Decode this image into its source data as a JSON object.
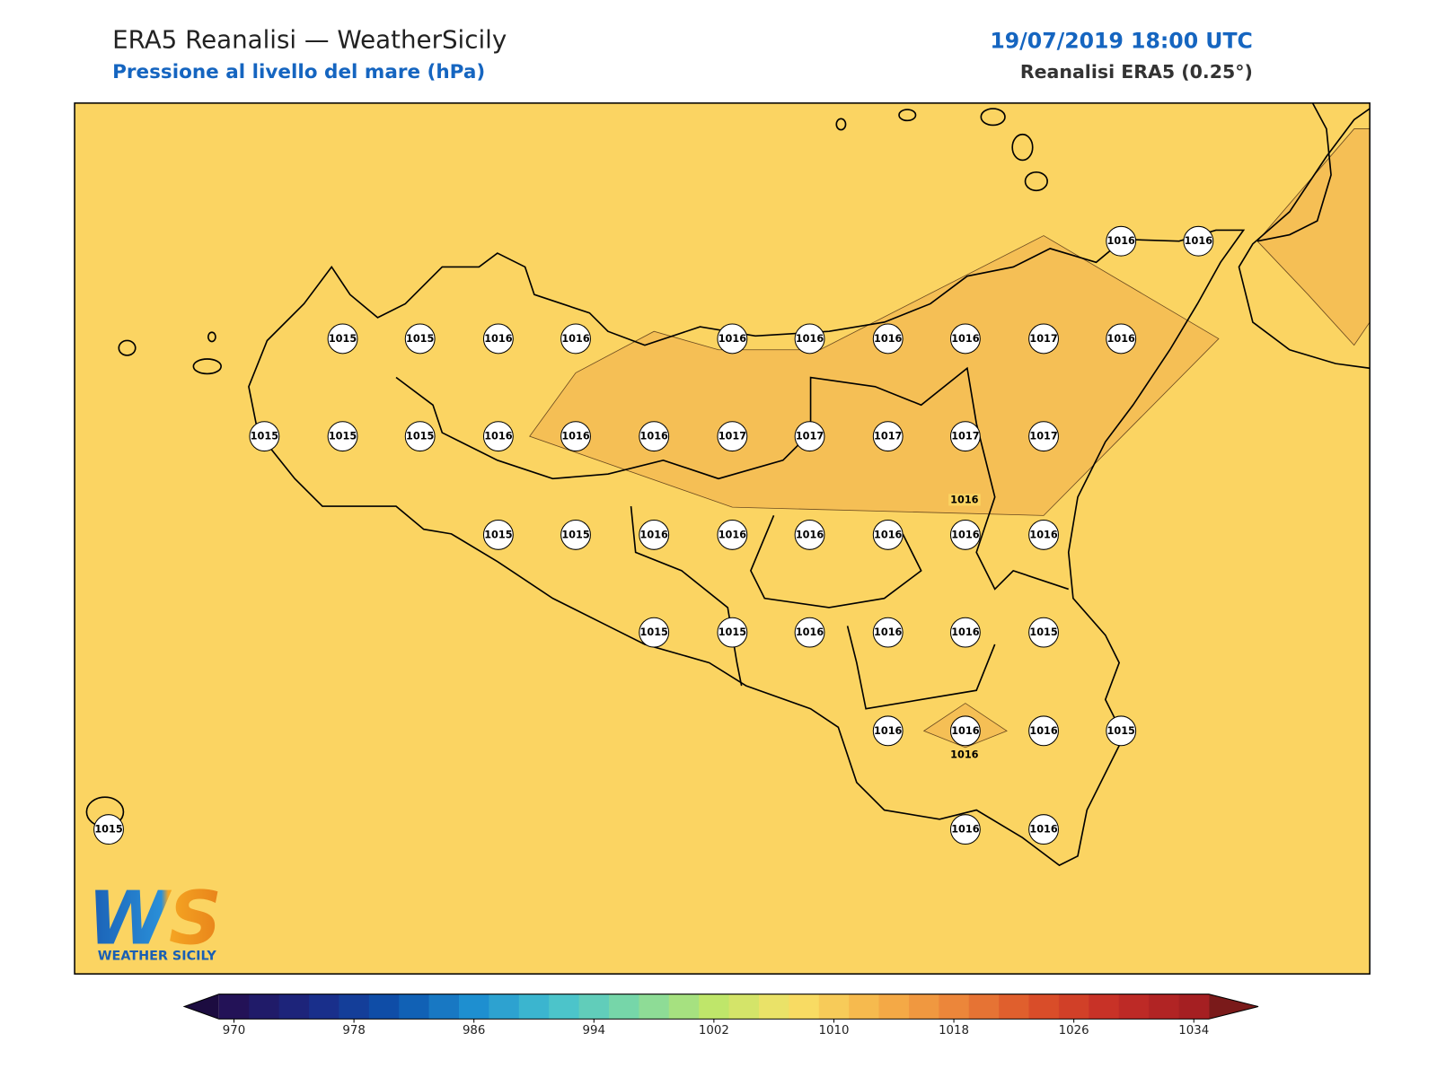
{
  "header": {
    "title": "ERA5 Reanalisi — WeatherSicily",
    "subtitle": "Pressione al livello del mare (hPa)",
    "datetime": "19/07/2019 18:00 UTC",
    "source": "Reanalisi ERA5 (0.25°)"
  },
  "stations": [
    1016,
    1016,
    1015,
    1015,
    1016,
    1016,
    1016,
    1016,
    1016,
    1016,
    1017,
    1016,
    1015,
    1015,
    1015,
    1016,
    1016,
    1016,
    1017,
    1017,
    1017,
    1017,
    1017,
    1015,
    1015,
    1016,
    1016,
    1016,
    1016,
    1016,
    1016,
    1015,
    1015,
    1016,
    1016,
    1016,
    1015,
    1016,
    1016,
    1016,
    1015,
    1015,
    1016,
    1016
  ],
  "contour_labels": [
    1016,
    1016
  ],
  "colorbar": {
    "ticks": [
      970,
      978,
      986,
      994,
      1002,
      1010,
      1018,
      1026,
      1034
    ],
    "step": 2,
    "colors": [
      "#231257",
      "#1b2a86",
      "#0d52ac",
      "#1e8fd0",
      "#45c1cf",
      "#7dd9a4",
      "#bfe66a",
      "#f8e067",
      "#f6b54a",
      "#ec863a",
      "#dc5229",
      "#c52d27",
      "#a51f22"
    ],
    "under": "#1c0c40",
    "over": "#7a1a1a"
  },
  "logo": {
    "mark": "WS",
    "name": "WEATHER SICILY"
  }
}
